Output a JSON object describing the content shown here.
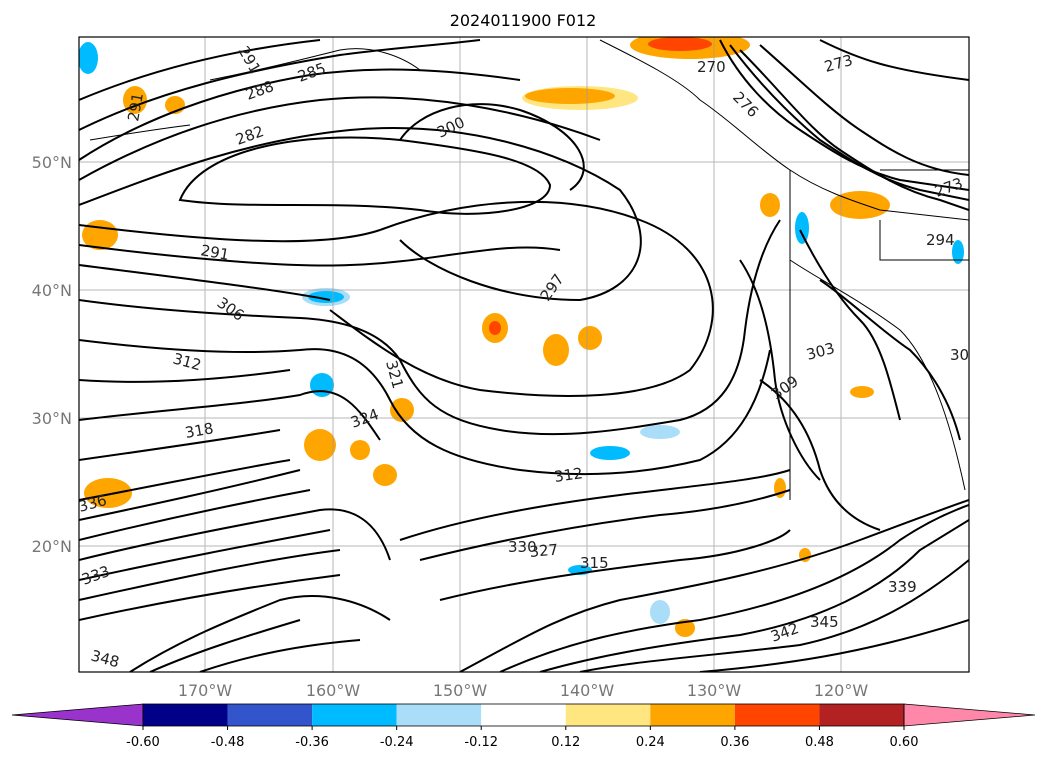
{
  "title": "2024011900 F012",
  "map": {
    "lat_labels": [
      "50°N",
      "40°N",
      "30°N",
      "20°N"
    ],
    "lon_labels": [
      "170°W",
      "160°W",
      "150°W",
      "140°W",
      "130°W",
      "120°W"
    ],
    "grid": true
  },
  "contour_labels": [
    "291",
    "285",
    "288",
    "282",
    "291",
    "300",
    "270",
    "273",
    "276",
    "291",
    "297",
    "306",
    "312",
    "318",
    "321",
    "324",
    "327",
    "330",
    "333",
    "336",
    "339",
    "342",
    "345",
    "348",
    "303",
    "309",
    "315",
    "273",
    "294",
    "30",
    "312"
  ],
  "colorbar": {
    "extend": "both",
    "tick_labels": [
      "-0.60",
      "-0.48",
      "-0.36",
      "-0.24",
      "-0.12",
      "0.12",
      "0.24",
      "0.36",
      "0.48",
      "0.60"
    ],
    "colors": [
      "#9933cc",
      "#000088",
      "#3355cc",
      "#00bbff",
      "#aaddf7",
      "#ffffff",
      "#ffe680",
      "#ffa500",
      "#ff4500",
      "#b22222",
      "#ff88aa"
    ]
  }
}
